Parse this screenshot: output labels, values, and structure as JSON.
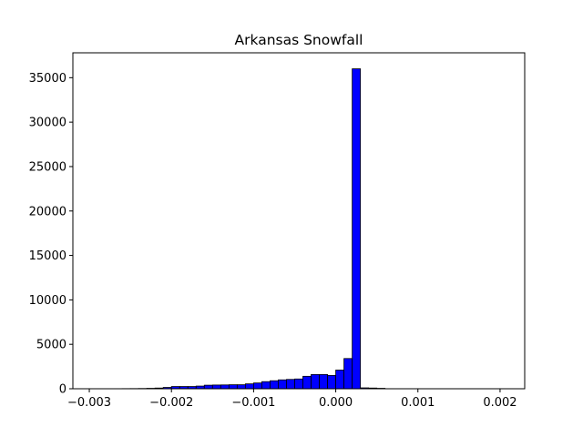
{
  "chart_data": {
    "type": "bar",
    "title": "Arkansas Snowfall",
    "xlabel": "",
    "ylabel": "",
    "xlim": [
      -0.0032,
      0.0023
    ],
    "ylim": [
      0,
      37800
    ],
    "x_ticks": [
      -0.003,
      -0.002,
      -0.001,
      0.0,
      0.001,
      0.002
    ],
    "x_tick_labels": [
      "−0.003",
      "−0.002",
      "−0.001",
      "0.000",
      "0.001",
      "0.002"
    ],
    "y_ticks": [
      0,
      5000,
      10000,
      15000,
      20000,
      25000,
      30000,
      35000
    ],
    "y_tick_labels": [
      "0",
      "5000",
      "10000",
      "15000",
      "20000",
      "25000",
      "30000",
      "35000"
    ],
    "bar_color": "#0000ff",
    "edge_color": "#000000",
    "bin_width": 0.0001,
    "bin_left_edges": [
      -0.003,
      -0.0029,
      -0.0028,
      -0.0027,
      -0.0026,
      -0.0025,
      -0.0024,
      -0.0023,
      -0.0022,
      -0.0021,
      -0.002,
      -0.0019,
      -0.0018,
      -0.0017,
      -0.0016,
      -0.0015,
      -0.0014,
      -0.0013,
      -0.0012,
      -0.0011,
      -0.001,
      -0.0009,
      -0.0008,
      -0.0007,
      -0.0006,
      -0.0005,
      -0.0004,
      -0.0003,
      -0.0002,
      -0.0001,
      0.0,
      0.0001,
      0.0002,
      0.0003,
      0.0004,
      0.0005,
      0.0006,
      0.0007,
      0.0008,
      0.0009,
      0.001,
      0.0011,
      0.0012,
      0.0013,
      0.0014,
      0.0015,
      0.0016,
      0.0017,
      0.0018,
      0.0019,
      0.002
    ],
    "values": [
      2,
      5,
      8,
      10,
      15,
      20,
      30,
      50,
      80,
      150,
      250,
      250,
      250,
      300,
      400,
      420,
      430,
      450,
      450,
      550,
      650,
      800,
      900,
      1000,
      1050,
      1100,
      1400,
      1600,
      1600,
      1500,
      2100,
      3400,
      36000,
      100,
      80,
      50,
      10,
      5,
      3,
      2,
      2,
      1,
      1,
      1,
      1,
      1,
      1,
      1,
      1,
      1,
      1
    ]
  }
}
